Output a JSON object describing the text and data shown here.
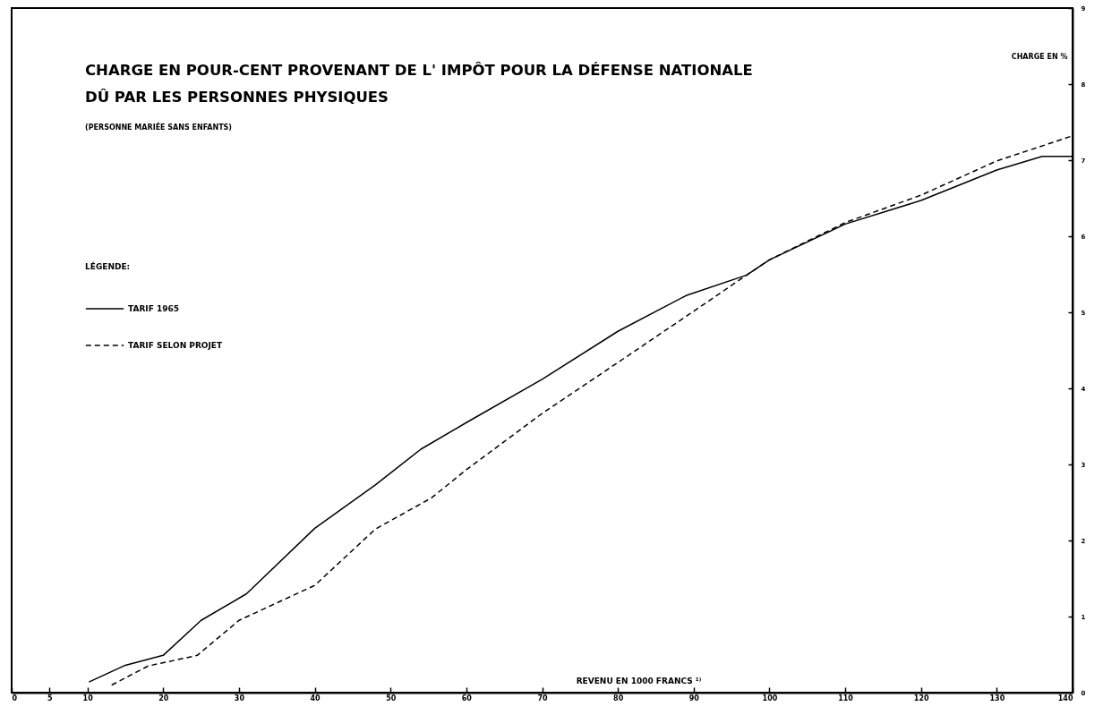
{
  "chart_data": {
    "type": "line",
    "title": [
      "CHARGE EN POUR-CENT PROVENANT DE L' IMPÔT POUR LA DÉFENSE NATIONALE",
      "DÛ PAR LES PERSONNES PHYSIQUES"
    ],
    "subtitle": "(PERSONNE MARIÉE SANS ENFANTS)",
    "xlabel": "REVENU EN 1000 FRANCS ¹⁾",
    "ylabel": "CHARGE EN %",
    "legend_title": "LÉGENDE:",
    "series": [
      {
        "name": "TARIF 1965",
        "color": "#000000",
        "line_style": "solid",
        "x": [
          10.2,
          15,
          20,
          25,
          31,
          40,
          48,
          54,
          60,
          70,
          80,
          89,
          97,
          100,
          110,
          120,
          130,
          136,
          140
        ],
        "values": [
          0.14,
          0.36,
          0.49,
          0.95,
          1.3,
          2.16,
          2.73,
          3.2,
          3.55,
          4.12,
          4.75,
          5.22,
          5.49,
          5.69,
          6.16,
          6.47,
          6.87,
          7.05,
          7.05
        ]
      },
      {
        "name": "TARIF SELON PROJET",
        "color": "#000000",
        "line_style": "dashed",
        "x": [
          13.2,
          18,
          24.5,
          30,
          40,
          48,
          55.4,
          60,
          70,
          80,
          89.5,
          97,
          100,
          110,
          120,
          130,
          140
        ],
        "values": [
          0.1,
          0.35,
          0.49,
          0.95,
          1.41,
          2.15,
          2.56,
          2.93,
          3.67,
          4.34,
          4.98,
          5.49,
          5.69,
          6.18,
          6.54,
          6.99,
          7.32
        ]
      }
    ],
    "xlim": [
      0,
      140
    ],
    "xticks": [
      0,
      5,
      10,
      20,
      30,
      40,
      50,
      60,
      70,
      80,
      90,
      100,
      110,
      120,
      130,
      140
    ],
    "ylim": [
      0,
      9
    ],
    "yticks": [
      0,
      1,
      2,
      3,
      4,
      5,
      6,
      7,
      8,
      9
    ],
    "grid": false,
    "legend": "left",
    "marker": "none"
  }
}
